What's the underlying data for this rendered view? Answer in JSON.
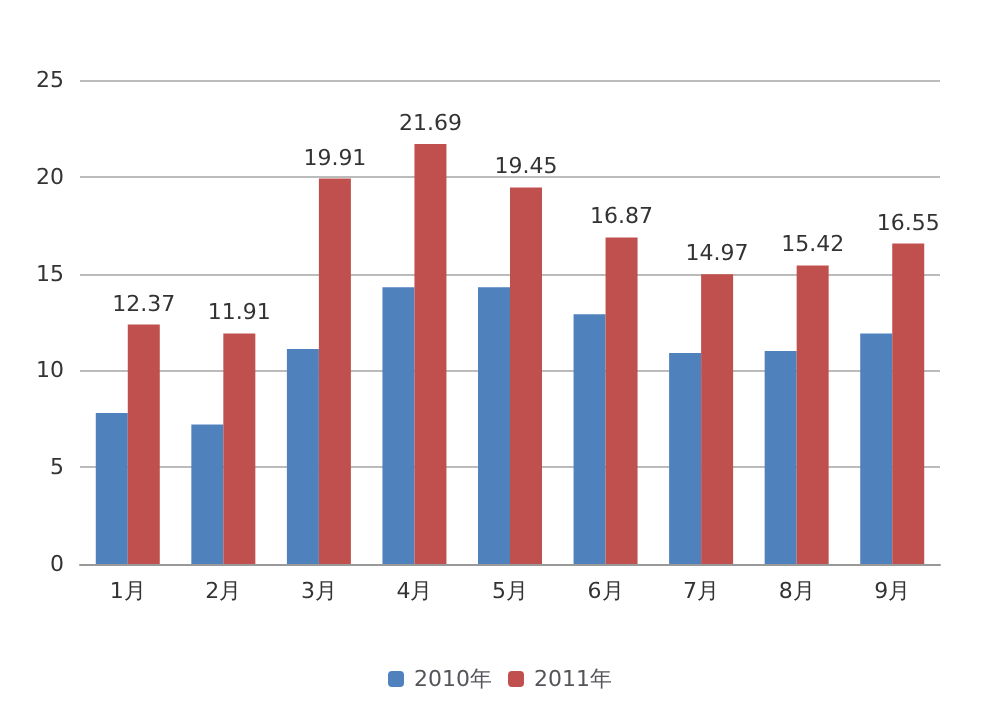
{
  "chart_data": {
    "type": "bar",
    "categories": [
      "1月",
      "2月",
      "3月",
      "4月",
      "5月",
      "6月",
      "7月",
      "8月",
      "9月"
    ],
    "series": [
      {
        "name": "2010年",
        "color": "#4f81bd",
        "values": [
          7.8,
          7.2,
          11.1,
          14.3,
          14.3,
          12.9,
          10.9,
          11.0,
          11.9
        ]
      },
      {
        "name": "2011年",
        "color": "#c0504d",
        "values": [
          12.37,
          11.91,
          19.91,
          21.69,
          19.45,
          16.87,
          14.97,
          15.42,
          16.55
        ],
        "value_labels": [
          "12.37",
          "11.91",
          "19.91",
          "21.69",
          "19.45",
          "16.87",
          "14.97",
          "15.42",
          "16.55"
        ]
      }
    ],
    "ylim": [
      0,
      25
    ],
    "yticks": [
      0,
      5,
      10,
      15,
      20,
      25
    ],
    "grid": "y",
    "legend": "bottom"
  }
}
